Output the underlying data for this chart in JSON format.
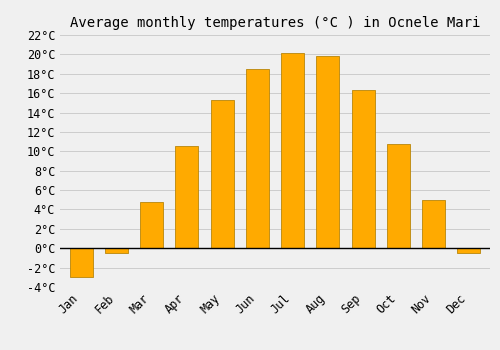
{
  "title": "Average monthly temperatures (°C ) in Ocnele Mari",
  "months": [
    "Jan",
    "Feb",
    "Mar",
    "Apr",
    "May",
    "Jun",
    "Jul",
    "Aug",
    "Sep",
    "Oct",
    "Nov",
    "Dec"
  ],
  "values": [
    -3.0,
    -0.5,
    4.8,
    10.5,
    15.3,
    18.5,
    20.1,
    19.8,
    16.3,
    10.8,
    5.0,
    -0.5
  ],
  "bar_color": "#FFAA00",
  "bar_edge_color": "#B8860B",
  "ylim": [
    -4,
    22
  ],
  "yticks": [
    -4,
    -2,
    0,
    2,
    4,
    6,
    8,
    10,
    12,
    14,
    16,
    18,
    20,
    22
  ],
  "background_color": "#F0F0F0",
  "grid_color": "#CCCCCC",
  "zero_line_color": "#000000",
  "title_fontsize": 10,
  "tick_fontsize": 8.5
}
